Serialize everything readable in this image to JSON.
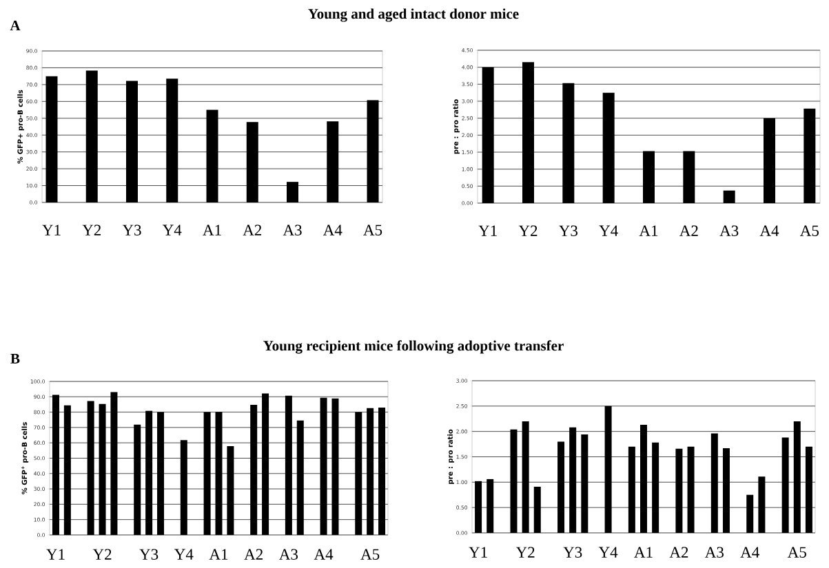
{
  "chart_data": [
    {
      "type": "bar",
      "title": "Young and aged intact donor mice",
      "annotations": [
        "A"
      ],
      "ylabel": "% GFP+ pro-B cells",
      "color": "#000000",
      "grid": "y",
      "categories": [
        "Y1",
        "Y2",
        "Y3",
        "Y4",
        "A1",
        "A2",
        "A3",
        "A4",
        "A5"
      ],
      "values": [
        75.0,
        78.3,
        72.2,
        73.5,
        55.0,
        47.8,
        12.2,
        48.2,
        60.7
      ],
      "ylim": [
        0,
        90
      ],
      "yticks": [
        {
          "value": 0,
          "label": "0.0"
        },
        {
          "value": 10,
          "label": "10.0"
        },
        {
          "value": 20,
          "label": "20.0"
        },
        {
          "value": 30,
          "label": "30.0"
        },
        {
          "value": 40,
          "label": "40.0"
        },
        {
          "value": 50,
          "label": "50.0"
        },
        {
          "value": 60,
          "label": "60.0"
        },
        {
          "value": 70,
          "label": "70.0"
        },
        {
          "value": 80,
          "label": "80.0"
        },
        {
          "value": 90,
          "label": "90.0"
        }
      ]
    },
    {
      "type": "bar",
      "ylabel": "pre : pro ratio",
      "color": "#000000",
      "grid": "y",
      "categories": [
        "Y1",
        "Y2",
        "Y3",
        "Y4",
        "A1",
        "A2",
        "A3",
        "A4",
        "A5"
      ],
      "values": [
        4.0,
        4.15,
        3.53,
        3.25,
        1.53,
        1.53,
        0.37,
        2.5,
        2.78
      ],
      "ylim": [
        0,
        4.5
      ],
      "yticks": [
        {
          "value": 0,
          "label": "0.00"
        },
        {
          "value": 0.5,
          "label": "0.50"
        },
        {
          "value": 1,
          "label": "1.00"
        },
        {
          "value": 1.5,
          "label": "1.50"
        },
        {
          "value": 2,
          "label": "2.00"
        },
        {
          "value": 2.5,
          "label": "2.50"
        },
        {
          "value": 3,
          "label": "3.00"
        },
        {
          "value": 3.5,
          "label": "3.50"
        },
        {
          "value": 4,
          "label": "4.00"
        },
        {
          "value": 4.5,
          "label": "4.50"
        }
      ]
    },
    {
      "type": "bar",
      "title": "Young recipient mice following adoptive transfer",
      "annotations": [
        "B"
      ],
      "ylabel": "% GFP$^{+}$ pro-B cells",
      "color": "#000000",
      "grid": "y",
      "categories": [
        "Y1",
        null,
        null,
        null,
        "Y2",
        null,
        null,
        null,
        "Y3",
        null,
        null,
        "Y4",
        null,
        null,
        "A1",
        null,
        null,
        "A2",
        null,
        null,
        "A3",
        null,
        null,
        "A4",
        null,
        null,
        null,
        "A5",
        null
      ],
      "values": [
        91.2,
        84.4,
        null,
        87.2,
        85.3,
        93.0,
        null,
        71.8,
        80.8,
        80.0,
        null,
        61.8,
        null,
        80.0,
        80.2,
        57.8,
        null,
        84.8,
        92.1,
        null,
        90.7,
        74.5,
        null,
        89.4,
        88.9,
        null,
        80.0,
        82.6,
        83.0
      ],
      "ylim": [
        0,
        100
      ],
      "yticks": [
        {
          "value": 0,
          "label": "0.0"
        },
        {
          "value": 10,
          "label": "10.0"
        },
        {
          "value": 20,
          "label": "20.0"
        },
        {
          "value": 30,
          "label": "30.0"
        },
        {
          "value": 40,
          "label": "40.0"
        },
        {
          "value": 50,
          "label": "50.0"
        },
        {
          "value": 60,
          "label": "60.0"
        },
        {
          "value": 70,
          "label": "70.0"
        },
        {
          "value": 80,
          "label": "80.0"
        },
        {
          "value": 90,
          "label": "90.0"
        },
        {
          "value": 100,
          "label": "100.0"
        }
      ]
    },
    {
      "type": "bar",
      "ylabel": "pre : pro ratio",
      "color": "#000000",
      "grid": "y",
      "categories": [
        "Y1",
        null,
        null,
        null,
        "Y2",
        null,
        null,
        null,
        "Y3",
        null,
        null,
        "Y4",
        null,
        null,
        "A1",
        null,
        null,
        "A2",
        null,
        null,
        "A3",
        null,
        null,
        "A4",
        null,
        null,
        null,
        "A5",
        null
      ],
      "values": [
        1.02,
        1.06,
        null,
        2.04,
        2.2,
        0.91,
        null,
        1.8,
        2.08,
        1.94,
        null,
        2.5,
        null,
        1.7,
        2.13,
        1.78,
        null,
        1.66,
        1.7,
        null,
        1.96,
        1.67,
        null,
        0.75,
        1.11,
        null,
        1.88,
        2.2,
        1.7
      ],
      "ylim": [
        0,
        3
      ],
      "yticks": [
        {
          "value": 0,
          "label": "0.00"
        },
        {
          "value": 0.5,
          "label": "0.50"
        },
        {
          "value": 1,
          "label": "1.00"
        },
        {
          "value": 1.5,
          "label": "1.50"
        },
        {
          "value": 2,
          "label": "2.00"
        },
        {
          "value": 2.5,
          "label": "2.50"
        },
        {
          "value": 3,
          "label": "3.00"
        }
      ]
    }
  ]
}
